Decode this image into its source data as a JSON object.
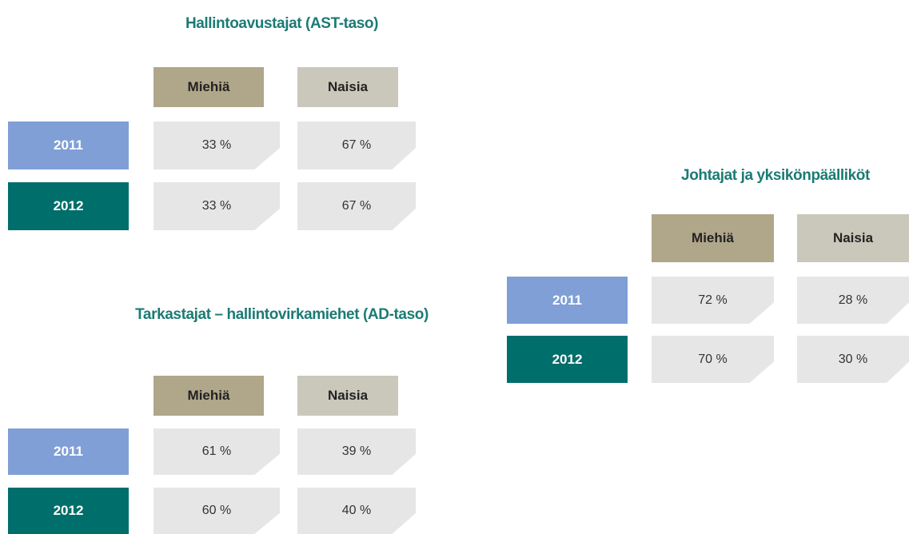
{
  "tables": [
    {
      "title": "Hallintoavustajat (AST-taso)",
      "columns": [
        "Miehiä",
        "Naisia"
      ],
      "rows": [
        {
          "year": "2011",
          "cells": [
            "33 %",
            "67 %"
          ]
        },
        {
          "year": "2012",
          "cells": [
            "33 %",
            "67 %"
          ]
        }
      ]
    },
    {
      "title": "Tarkastajat – hallintovirkamiehet (AD-taso)",
      "columns": [
        "Miehiä",
        "Naisia"
      ],
      "rows": [
        {
          "year": "2011",
          "cells": [
            "61 %",
            "39 %"
          ]
        },
        {
          "year": "2012",
          "cells": [
            "60 %",
            "40 %"
          ]
        }
      ]
    },
    {
      "title": "Johtajat ja yksikönpäälliköt",
      "columns": [
        "Miehiä",
        "Naisia"
      ],
      "rows": [
        {
          "year": "2011",
          "cells": [
            "72 %",
            "28 %"
          ]
        },
        {
          "year": "2012",
          "cells": [
            "70 %",
            "30 %"
          ]
        }
      ]
    }
  ]
}
